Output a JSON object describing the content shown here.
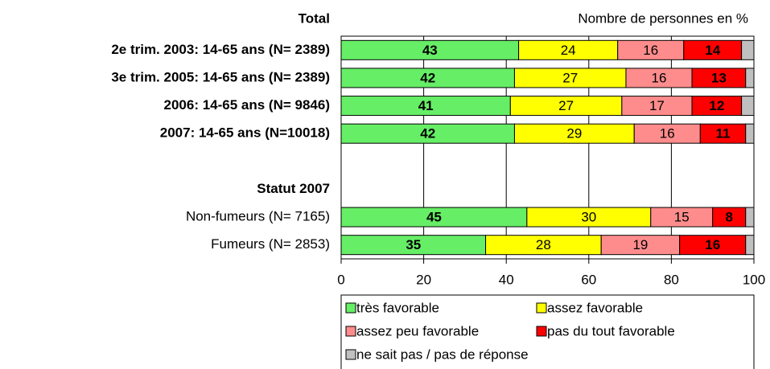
{
  "chart_data": {
    "type": "stacked-barh",
    "header": "Total",
    "subtitle": "Nombre de personnes en %",
    "categories": [
      "2e trim. 2003: 14-65 ans (N=  2389)",
      "3e trim. 2005: 14-65 ans (N=  2389)",
      "2006: 14-65 ans (N=  9846)",
      "2007: 14-65 ans (N=10018)",
      null,
      "Statut 2007",
      "Non-fumeurs (N=  7165)",
      "Fumeurs (N=  2853)"
    ],
    "bold_categories": [
      true,
      true,
      true,
      true,
      false,
      true,
      false,
      false
    ],
    "series": [
      {
        "name": "très favorable",
        "color": "#66ee66",
        "label_color": "#000",
        "label_bold": true,
        "show_labels": true,
        "values": [
          43,
          42,
          41,
          42,
          null,
          null,
          45,
          35
        ]
      },
      {
        "name": "assez favorable",
        "color": "#ffff00",
        "label_color": "#000",
        "label_bold": false,
        "show_labels": true,
        "values": [
          24,
          27,
          27,
          29,
          null,
          null,
          30,
          28
        ]
      },
      {
        "name": "assez peu favorable",
        "color": "#ff8c8c",
        "label_color": "#000",
        "label_bold": false,
        "show_labels": true,
        "values": [
          16,
          16,
          17,
          16,
          null,
          null,
          15,
          19
        ]
      },
      {
        "name": "pas du tout favorable",
        "color": "#ff0000",
        "label_color": "#fff",
        "label_bold": true,
        "show_labels": true,
        "values": [
          14,
          13,
          12,
          11,
          null,
          null,
          8,
          16
        ]
      },
      {
        "name": "ne sait pas  / pas de réponse",
        "color": "#c0c0c0",
        "label_color": "#000",
        "label_bold": false,
        "show_labels": false,
        "values": [
          3,
          2,
          3,
          2,
          null,
          null,
          2,
          2
        ]
      }
    ],
    "xlim": [
      0,
      100
    ],
    "xticks": [
      0,
      20,
      40,
      60,
      80,
      100
    ],
    "grid": true,
    "legend": "bottom"
  }
}
